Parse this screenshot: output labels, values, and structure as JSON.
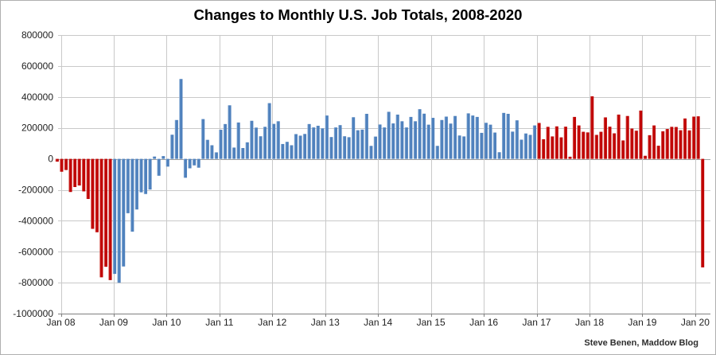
{
  "page": {
    "background": "#ffffff",
    "border_color": "#b0b0b0"
  },
  "chart_data": {
    "type": "bar",
    "title": "Changes to Monthly U.S. Job Totals, 2008-2020",
    "attribution": "Steve Benen, Maddow Blog",
    "xlabel": "",
    "ylabel": "",
    "grid": true,
    "legend": "none",
    "ylim": [
      -1000000,
      800000
    ],
    "y_tick_step": 200000,
    "y_tick_labels": [
      "800000",
      "600000",
      "400000",
      "200000",
      "0",
      "-200000",
      "-400000",
      "-600000",
      "-800000",
      "-1000000"
    ],
    "x_tick_labels": [
      "Jan 08",
      "Jan 09",
      "Jan 10",
      "Jan 11",
      "Jan 12",
      "Jan 13",
      "Jan 14",
      "Jan 15",
      "Jan 16",
      "Jan 17",
      "Jan 18",
      "Jan 19",
      "Jan 20"
    ],
    "start_month": "2008-01",
    "end_month": "2020-03",
    "unit": "jobs (monthly change, U.S. nonfarm payrolls)",
    "series_colors": {
      "republican": "#c00404",
      "republican_highlight": "#e2837b",
      "democrat": "#4f81bd",
      "democrat_highlight": "#a3c0e0"
    },
    "color_segments": [
      {
        "party_color_key": "republican",
        "from": "2008-01",
        "to": "2009-01",
        "from_index": 0,
        "to_index": 12
      },
      {
        "party_color_key": "democrat",
        "from": "2009-02",
        "to": "2017-01",
        "from_index": 13,
        "to_index": 108
      },
      {
        "party_color_key": "republican",
        "from": "2017-02",
        "to": "2020-03",
        "from_index": 109,
        "to_index": 146
      }
    ],
    "values": [
      -18000,
      -83000,
      -72000,
      -214000,
      -182000,
      -172000,
      -210000,
      -259000,
      -452000,
      -474000,
      -765000,
      -697000,
      -783000,
      -743000,
      -800000,
      -695000,
      -351000,
      -470000,
      -327000,
      -216000,
      -227000,
      -198000,
      15000,
      -109000,
      18000,
      -50000,
      156000,
      251000,
      516000,
      -122000,
      -61000,
      -42000,
      -57000,
      257000,
      123000,
      88000,
      42000,
      188000,
      225000,
      346000,
      73000,
      235000,
      70000,
      107000,
      246000,
      202000,
      146000,
      207000,
      360000,
      226000,
      243000,
      96000,
      110000,
      88000,
      160000,
      150000,
      161000,
      225000,
      203000,
      214000,
      197000,
      280000,
      141000,
      203000,
      218000,
      146000,
      140000,
      269000,
      185000,
      189000,
      291000,
      84000,
      144000,
      222000,
      203000,
      304000,
      229000,
      286000,
      243000,
      203000,
      271000,
      243000,
      321000,
      292000,
      221000,
      265000,
      84000,
      251000,
      273000,
      228000,
      277000,
      151000,
      145000,
      294000,
      280000,
      271000,
      168000,
      233000,
      221000,
      170000,
      43000,
      297000,
      291000,
      176000,
      249000,
      124000,
      164000,
      155000,
      216000,
      232000,
      127000,
      207000,
      145000,
      210000,
      139000,
      208000,
      14000,
      271000,
      216000,
      175000,
      171000,
      404000,
      155000,
      175000,
      268000,
      208000,
      165000,
      286000,
      119000,
      277000,
      196000,
      182000,
      312000,
      20000,
      153000,
      216000,
      85000,
      178000,
      193000,
      207000,
      206000,
      185000,
      261000,
      184000,
      273000,
      275000,
      -701000
    ]
  }
}
